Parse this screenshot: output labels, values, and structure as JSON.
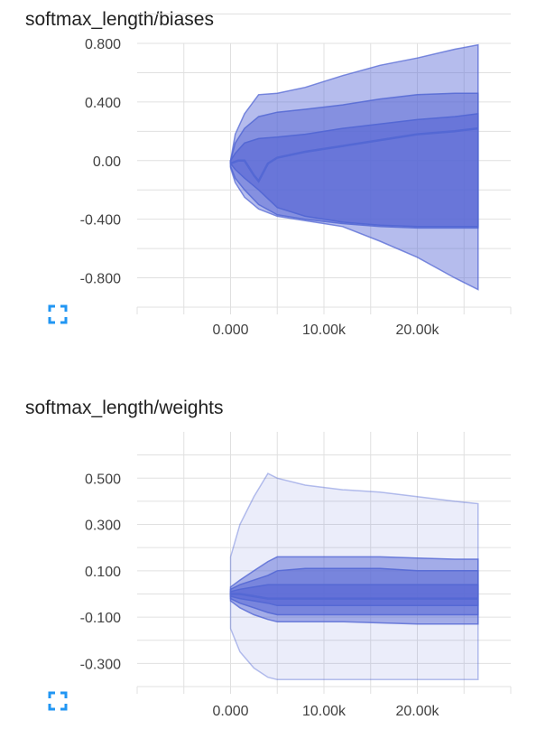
{
  "charts": [
    {
      "title": "softmax_length/biases",
      "chart_data": {
        "type": "area",
        "title": "softmax_length/biases",
        "x_ticks": [
          0,
          10000,
          20000
        ],
        "x_tick_labels": [
          "0.000",
          "10.00k",
          "20.00k"
        ],
        "y_ticks": [
          0.8,
          0.4,
          0,
          -0.4,
          -0.8
        ],
        "y_tick_labels": [
          "0.800",
          "0.400",
          "0.00",
          "-0.400",
          "-0.800"
        ],
        "xlim": [
          -10000,
          30000
        ],
        "ylim": [
          -1.0,
          0.8
        ],
        "grid": true,
        "bands": [
          {
            "name": "",
            "opacity": 0.45,
            "x": [
              0,
              500,
              1500,
              3000,
              5000,
              8000,
              12000,
              16000,
              20000,
              24000,
              26500
            ],
            "upper": [
              0.0,
              0.18,
              0.32,
              0.45,
              0.46,
              0.5,
              0.58,
              0.65,
              0.7,
              0.76,
              0.79
            ],
            "lower": [
              -0.05,
              -0.15,
              -0.25,
              -0.33,
              -0.38,
              -0.41,
              -0.45,
              -0.55,
              -0.66,
              -0.8,
              -0.88
            ]
          },
          {
            "name": "",
            "opacity": 0.55,
            "x": [
              0,
              500,
              1500,
              3000,
              5000,
              8000,
              12000,
              16000,
              20000,
              24000,
              26500
            ],
            "upper": [
              0.0,
              0.12,
              0.22,
              0.3,
              0.33,
              0.35,
              0.38,
              0.42,
              0.45,
              0.46,
              0.46
            ],
            "lower": [
              -0.04,
              -0.12,
              -0.2,
              -0.3,
              -0.37,
              -0.4,
              -0.43,
              -0.45,
              -0.46,
              -0.46,
              -0.46
            ]
          },
          {
            "name": "",
            "opacity": 0.7,
            "x": [
              0,
              500,
              1500,
              3000,
              5000,
              8000,
              12000,
              16000,
              20000,
              24000,
              26500
            ],
            "upper": [
              0.0,
              0.05,
              0.12,
              0.15,
              0.16,
              0.18,
              0.22,
              0.25,
              0.28,
              0.3,
              0.32
            ],
            "lower": [
              -0.02,
              -0.06,
              -0.12,
              -0.2,
              -0.32,
              -0.38,
              -0.42,
              -0.44,
              -0.45,
              -0.45,
              -0.45
            ]
          }
        ],
        "lines": [
          {
            "name": "",
            "x": [
              0,
              800,
              1500,
              2500,
              3000,
              4000,
              5000,
              8000,
              12000,
              16000,
              20000,
              24000,
              26500
            ],
            "y": [
              -0.02,
              0.0,
              0.0,
              -0.1,
              -0.14,
              -0.02,
              0.02,
              0.06,
              0.1,
              0.14,
              0.18,
              0.2,
              0.22
            ]
          }
        ]
      }
    },
    {
      "title": "softmax_length/weights",
      "chart_data": {
        "type": "area",
        "title": "softmax_length/weights",
        "x_ticks": [
          0,
          10000,
          20000
        ],
        "x_tick_labels": [
          "0.000",
          "10.00k",
          "20.00k"
        ],
        "y_ticks": [
          0.5,
          0.3,
          0.1,
          -0.1,
          -0.3
        ],
        "y_tick_labels": [
          "0.500",
          "0.300",
          "0.100",
          "-0.100",
          "-0.300"
        ],
        "xlim": [
          -10000,
          30000
        ],
        "ylim": [
          -0.4,
          0.7
        ],
        "grid": true,
        "bands": [
          {
            "name": "",
            "opacity": 0.12,
            "x": [
              0,
              1000,
              2500,
              4000,
              5000,
              8000,
              12000,
              16000,
              20000,
              24000,
              26500
            ],
            "upper": [
              0.16,
              0.3,
              0.42,
              0.52,
              0.5,
              0.47,
              0.45,
              0.44,
              0.42,
              0.4,
              0.39
            ],
            "lower": [
              -0.15,
              -0.25,
              -0.32,
              -0.36,
              -0.37,
              -0.37,
              -0.37,
              -0.37,
              -0.37,
              -0.37,
              -0.37
            ]
          },
          {
            "name": "",
            "opacity": 0.5,
            "x": [
              0,
              1000,
              2500,
              4000,
              5000,
              8000,
              12000,
              16000,
              20000,
              24000,
              26500
            ],
            "upper": [
              0.03,
              0.06,
              0.1,
              0.14,
              0.16,
              0.16,
              0.16,
              0.16,
              0.155,
              0.15,
              0.15
            ],
            "lower": [
              -0.03,
              -0.06,
              -0.09,
              -0.11,
              -0.12,
              -0.12,
              -0.12,
              -0.125,
              -0.13,
              -0.13,
              -0.13
            ]
          },
          {
            "name": "",
            "opacity": 0.6,
            "x": [
              0,
              1000,
              2500,
              4000,
              5000,
              8000,
              12000,
              16000,
              20000,
              24000,
              26500
            ],
            "upper": [
              0.02,
              0.04,
              0.06,
              0.08,
              0.1,
              0.11,
              0.11,
              0.11,
              0.1,
              0.1,
              0.1
            ],
            "lower": [
              -0.02,
              -0.04,
              -0.06,
              -0.08,
              -0.09,
              -0.09,
              -0.09,
              -0.09,
              -0.09,
              -0.09,
              -0.09
            ]
          },
          {
            "name": "",
            "opacity": 0.75,
            "x": [
              0,
              1000,
              2500,
              4000,
              5000,
              8000,
              12000,
              16000,
              20000,
              24000,
              26500
            ],
            "upper": [
              0.01,
              0.02,
              0.03,
              0.04,
              0.04,
              0.04,
              0.04,
              0.04,
              0.04,
              0.04,
              0.04
            ],
            "lower": [
              -0.01,
              -0.02,
              -0.03,
              -0.04,
              -0.05,
              -0.05,
              -0.05,
              -0.05,
              -0.05,
              -0.05,
              -0.05
            ]
          }
        ],
        "lines": [
          {
            "name": "",
            "x": [
              0,
              1000,
              2500,
              4000,
              5000,
              8000,
              12000,
              16000,
              20000,
              24000,
              26500
            ],
            "y": [
              0.0,
              0.0,
              -0.01,
              -0.02,
              -0.02,
              -0.02,
              -0.02,
              -0.02,
              -0.02,
              -0.02,
              -0.02
            ]
          }
        ]
      }
    }
  ],
  "colors": {
    "series": "#5c6bd6",
    "line": "#5468d4",
    "grid": "#e0e0e0",
    "axis_text": "#424242",
    "title_text": "#212121",
    "expand_icon": "#2196f3"
  },
  "icons": {
    "expand": "fullscreen-expand-icon"
  }
}
